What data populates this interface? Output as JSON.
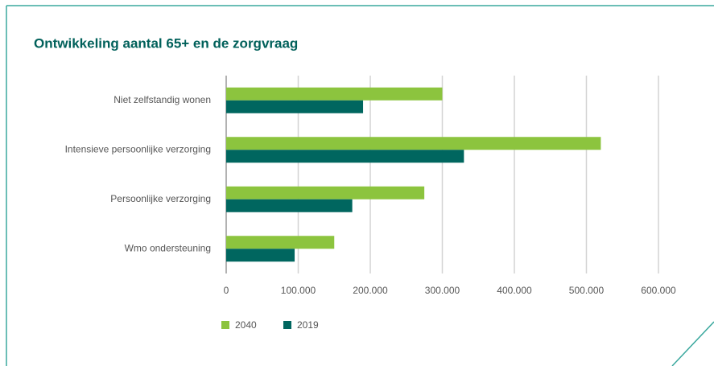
{
  "chart_data": {
    "type": "barh",
    "title": "Ontwikkeling aantal 65+ en de zorgvraag",
    "categories": [
      "Niet zelfstandig wonen",
      "Intensieve persoonlijke verzorging",
      "Persoonlijke verzorging",
      "Wmo ondersteuning"
    ],
    "series": [
      {
        "name": "2040",
        "color": "#8cc43e",
        "values": [
          300000,
          520000,
          275000,
          150000
        ]
      },
      {
        "name": "2019",
        "color": "#00665f",
        "values": [
          190000,
          330000,
          175000,
          95000
        ]
      }
    ],
    "xlim": [
      0,
      600000
    ],
    "xticks": [
      0,
      {
        "value": 100000,
        "label": "100.000"
      },
      {
        "value": 200000,
        "label": "200.000"
      },
      {
        "value": 300000,
        "label": "300.000"
      },
      {
        "value": 400000,
        "label": "400.000"
      },
      {
        "value": 500000,
        "label": "500.000"
      },
      {
        "value": 600000,
        "label": "600.000"
      }
    ],
    "grid": true,
    "legend": "bottom-left"
  }
}
